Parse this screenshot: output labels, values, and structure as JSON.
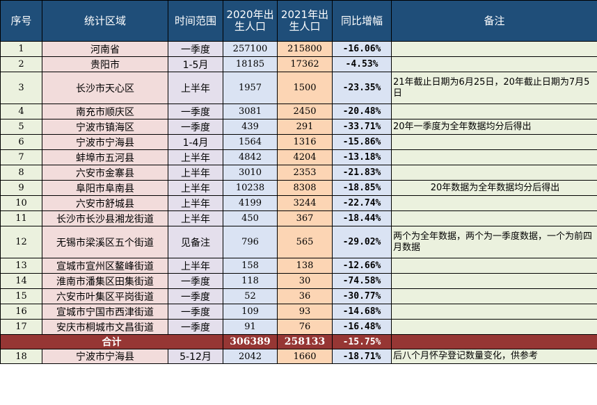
{
  "headers": {
    "idx": "序号",
    "region": "统计区域",
    "time": "时间范围",
    "y2020": "2020年出生人口",
    "y2021": "2021年出生人口",
    "yoy": "同比增幅",
    "note": "备注"
  },
  "rows": [
    {
      "idx": "1",
      "region": "河南省",
      "time": "一季度",
      "y2020": "257100",
      "y2021": "215800",
      "yoy": "-16.06%",
      "note": ""
    },
    {
      "idx": "2",
      "region": "贵阳市",
      "time": "1-5月",
      "y2020": "18185",
      "y2021": "17362",
      "yoy": "-4.53%",
      "note": ""
    },
    {
      "idx": "3",
      "region": "长沙市天心区",
      "time": "上半年",
      "y2020": "1957",
      "y2021": "1500",
      "yoy": "-23.35%",
      "note": "21年截止日期为6月25日，20年截止日期为7月5日"
    },
    {
      "idx": "4",
      "region": "南充市顺庆区",
      "time": "一季度",
      "y2020": "3081",
      "y2021": "2450",
      "yoy": "-20.48%",
      "note": ""
    },
    {
      "idx": "5",
      "region": "宁波市镇海区",
      "time": "一季度",
      "y2020": "439",
      "y2021": "291",
      "yoy": "-33.71%",
      "note": "20年一季度为全年数据均分后得出"
    },
    {
      "idx": "6",
      "region": "宁波市宁海县",
      "time": "1-4月",
      "y2020": "1564",
      "y2021": "1316",
      "yoy": "-15.86%",
      "note": ""
    },
    {
      "idx": "7",
      "region": "蚌埠市五河县",
      "time": "上半年",
      "y2020": "4842",
      "y2021": "4204",
      "yoy": "-13.18%",
      "note": ""
    },
    {
      "idx": "8",
      "region": "六安市金寨县",
      "time": "上半年",
      "y2020": "3010",
      "y2021": "2353",
      "yoy": "-21.83%",
      "note": ""
    },
    {
      "idx": "9",
      "region": "阜阳市阜南县",
      "time": "上半年",
      "y2020": "10238",
      "y2021": "8308",
      "yoy": "-18.85%",
      "note": "20年数据为全年数据均分后得出"
    },
    {
      "idx": "10",
      "region": "六安市舒城县",
      "time": "上半年",
      "y2020": "4199",
      "y2021": "3244",
      "yoy": "-22.74%",
      "note": ""
    },
    {
      "idx": "11",
      "region": "长沙市长沙县湘龙街道",
      "time": "上半年",
      "y2020": "450",
      "y2021": "367",
      "yoy": "-18.44%",
      "note": ""
    },
    {
      "idx": "12",
      "region": "无锡市梁溪区五个街道",
      "time": "见备注",
      "y2020": "796",
      "y2021": "565",
      "yoy": "-29.02%",
      "note": "两个为全年数据，两个为一季度数据，一个为前四月数据"
    },
    {
      "idx": "13",
      "region": "宣城市宣州区鳌峰街道",
      "time": "上半年",
      "y2020": "158",
      "y2021": "138",
      "yoy": "-12.66%",
      "note": ""
    },
    {
      "idx": "14",
      "region": "淮南市潘集区田集街道",
      "time": "一季度",
      "y2020": "118",
      "y2021": "30",
      "yoy": "-74.58%",
      "note": ""
    },
    {
      "idx": "15",
      "region": "六安市叶集区平岗街道",
      "time": "一季度",
      "y2020": "52",
      "y2021": "36",
      "yoy": "-30.77%",
      "note": ""
    },
    {
      "idx": "16",
      "region": "宣城市宁国市西津街道",
      "time": "一季度",
      "y2020": "109",
      "y2021": "93",
      "yoy": "-14.68%",
      "note": ""
    },
    {
      "idx": "17",
      "region": "安庆市桐城市文昌街道",
      "time": "一季度",
      "y2020": "91",
      "y2021": "76",
      "yoy": "-16.48%",
      "note": ""
    }
  ],
  "total": {
    "label": "合计",
    "y2020": "306389",
    "y2021": "258133",
    "yoy": "-15.75%"
  },
  "extra": {
    "idx": "18",
    "region": "宁波市宁海县",
    "time": "5-12月",
    "y2020": "2042",
    "y2021": "1660",
    "yoy": "-18.71%",
    "note": "后八个月怀孕登记数量变化，供参考"
  },
  "colors": {
    "header_bg": "#1f4e79",
    "total_bg": "#963634",
    "index_bg": "#ebf1de",
    "region_bg": "#f2dcdb",
    "time_bg": "#e4dfec",
    "y2020_bg": "#dae3f3",
    "y2021_bg": "#fcd5b4"
  }
}
